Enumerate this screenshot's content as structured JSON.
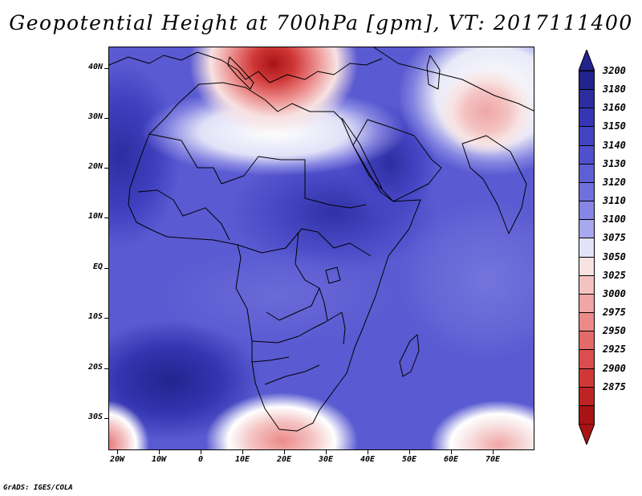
{
  "title": "Geopotential Height at 700hPa [gpm], VT: 2017111400",
  "credit": "GrADS: IGES/COLA",
  "lat_labels": [
    "40N",
    "30N",
    "20N",
    "10N",
    "EQ",
    "10S",
    "20S",
    "30S"
  ],
  "lat_values": [
    40,
    30,
    20,
    10,
    0,
    -10,
    -20,
    -30
  ],
  "lon_labels": [
    "20W",
    "10W",
    "0",
    "10E",
    "20E",
    "30E",
    "40E",
    "50E",
    "60E",
    "70E"
  ],
  "lon_values": [
    -20,
    -10,
    0,
    10,
    20,
    30,
    40,
    50,
    60,
    70
  ],
  "map_extent": {
    "lon_min": -22,
    "lon_max": 80,
    "lat_min": -37,
    "lat_max": 45
  },
  "colorbar": {
    "levels": [
      "3200",
      "3180",
      "3160",
      "3150",
      "3140",
      "3130",
      "3120",
      "3110",
      "3100",
      "3075",
      "3050",
      "3025",
      "3000",
      "2975",
      "2950",
      "2925",
      "2900",
      "2875"
    ],
    "colors": [
      "#23238e",
      "#2d2da0",
      "#3636b4",
      "#4343c2",
      "#5050cc",
      "#5f5fd4",
      "#7070dc",
      "#8686e4",
      "#a8a8ee",
      "#e2e2f8",
      "#f8e2e2",
      "#f4c2c2",
      "#f0a6a6",
      "#ec8a8a",
      "#e46a6a",
      "#dc4e4e",
      "#d03838",
      "#be2424",
      "#a81414"
    ],
    "upper_arrow_color": "#23238e",
    "lower_arrow_color": "#a81414"
  }
}
